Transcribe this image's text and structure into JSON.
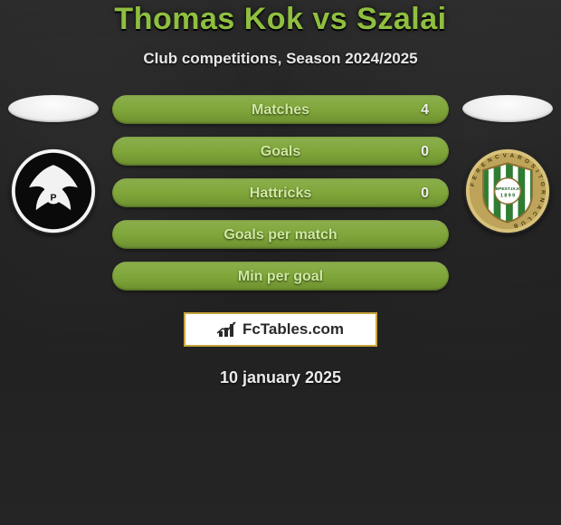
{
  "title_text": "Thomas Kok vs Szalai",
  "title_color": "#8fbf3f",
  "subtitle": "Club competitions, Season 2024/2025",
  "date": "10 january 2025",
  "brand_text": "FcTables.com",
  "brand_border_color": "#c9a53c",
  "row_fill_color": "#7ea538",
  "row_label_color": "#cfe9a0",
  "background_base": "#222222",
  "rows": [
    {
      "label": "Matches",
      "left": "",
      "right": "4"
    },
    {
      "label": "Goals",
      "left": "",
      "right": "0"
    },
    {
      "label": "Hattricks",
      "left": "",
      "right": "0"
    },
    {
      "label": "Goals per match",
      "left": "",
      "right": ""
    },
    {
      "label": "Min per goal",
      "left": "",
      "right": ""
    }
  ],
  "left_club": {
    "name": "Preussen Münster",
    "colors": {
      "outer": "#ffffff",
      "inner": "#0a0a0a"
    }
  },
  "right_club": {
    "name": "Ferencvárosi TC",
    "colors": {
      "band": "#d8c27a",
      "stripes_green": "#2e7d32",
      "stripes_white": "#ffffff",
      "center_bg": "#ffffff"
    }
  }
}
